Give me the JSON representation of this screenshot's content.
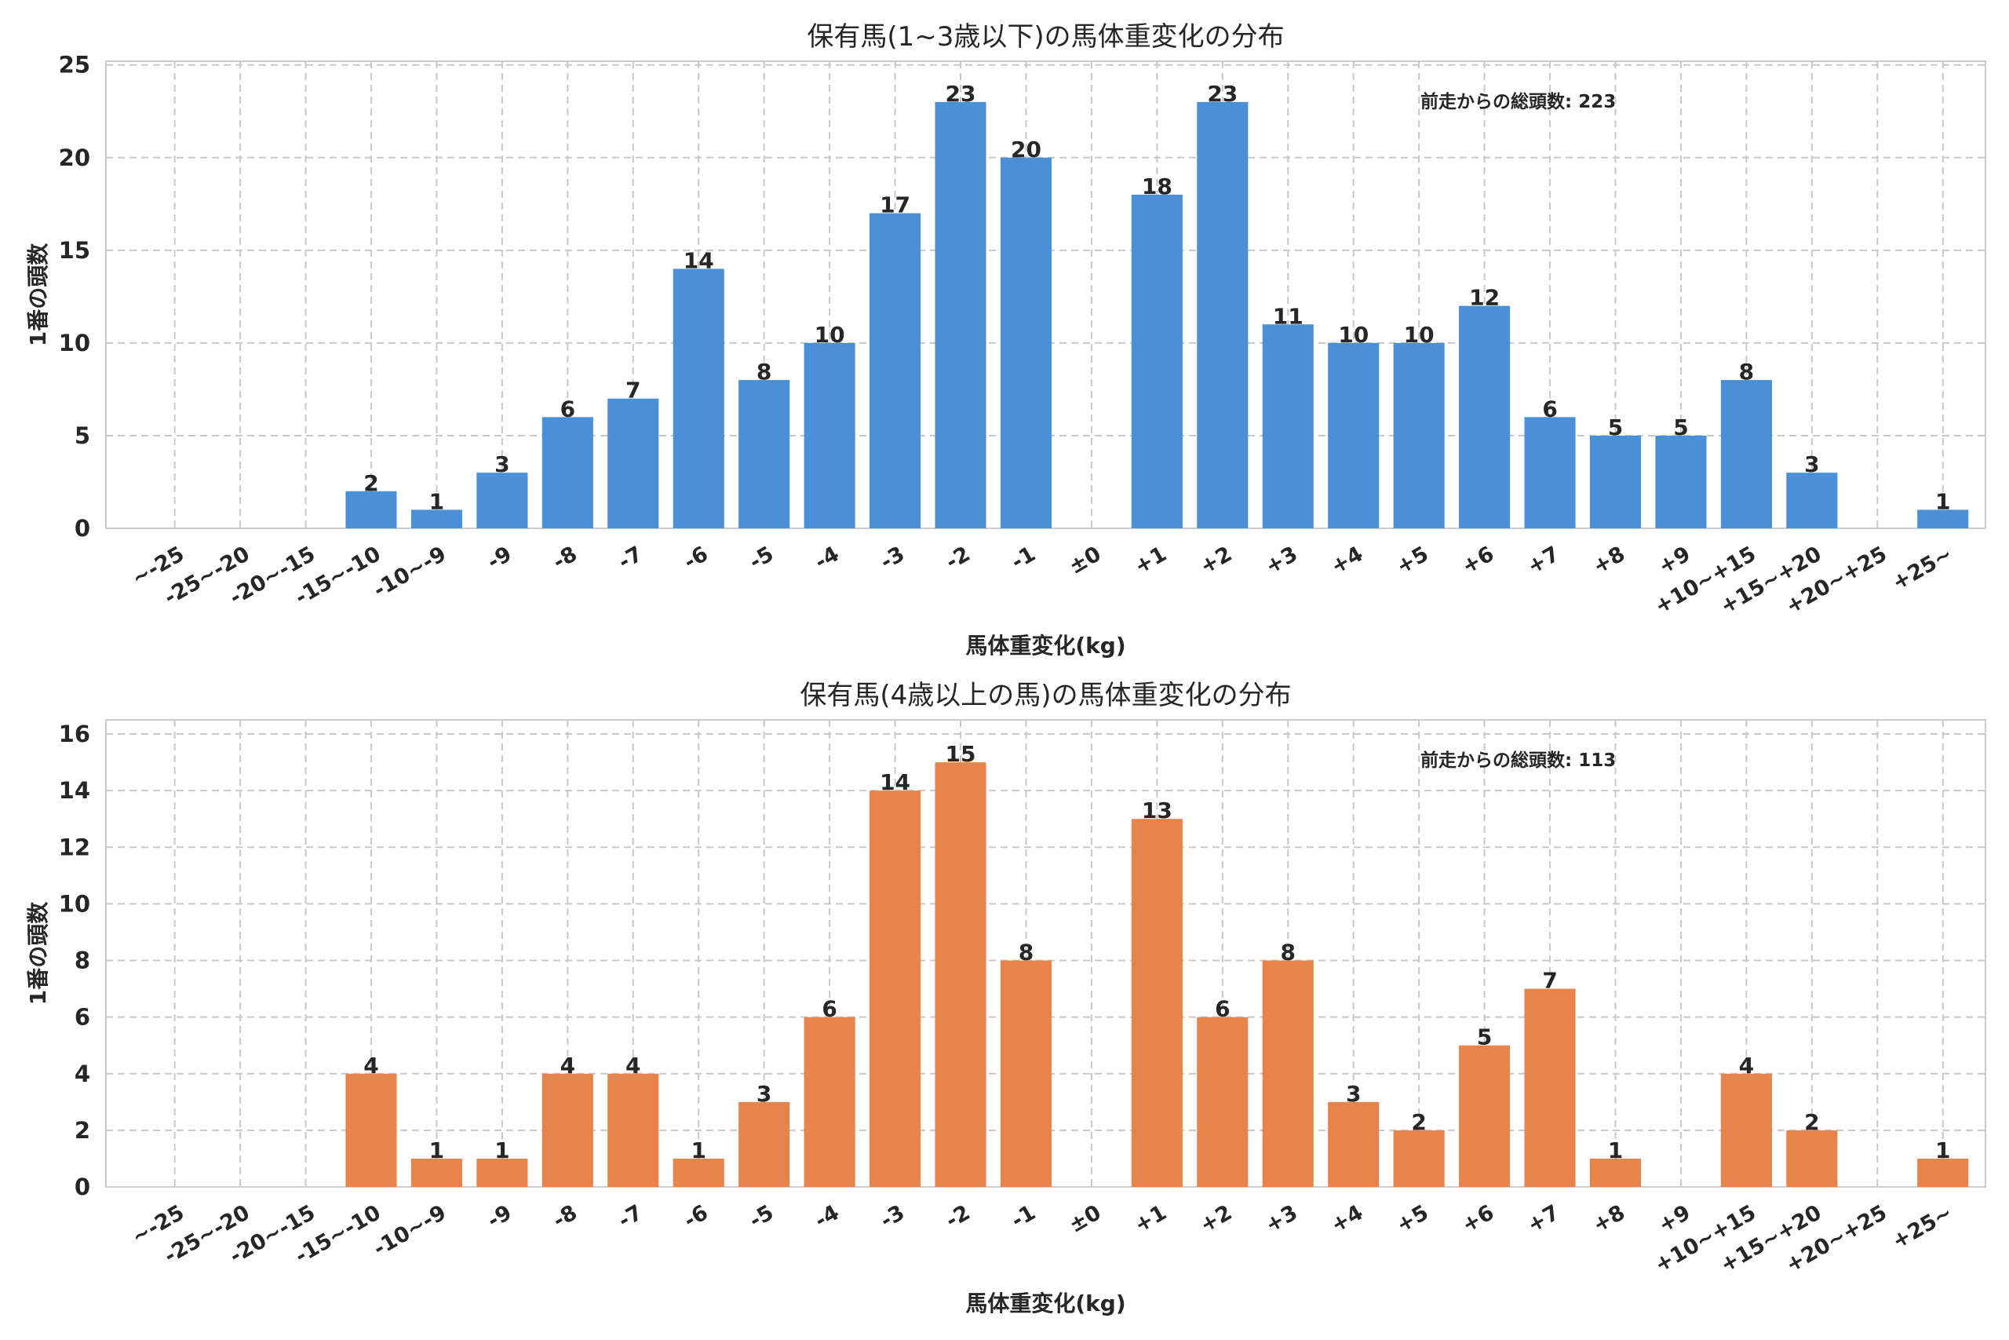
{
  "chart_data": [
    {
      "type": "bar",
      "title": "保有馬(1~3歳以下)の馬体重変化の分布",
      "xlabel": "馬体重変化(kg)",
      "ylabel": "1番の頭数",
      "annotation": "前走からの総頭数: 223",
      "color": "#4a90d9",
      "ylim": [
        0,
        25.2
      ],
      "yticks": [
        0,
        5,
        10,
        15,
        20,
        25
      ],
      "legend": "none",
      "grid": true,
      "categories": [
        "~-25",
        "-25~-20",
        "-20~-15",
        "-15~-10",
        "-10~-9",
        "-9",
        "-8",
        "-7",
        "-6",
        "-5",
        "-4",
        "-3",
        "-2",
        "-1",
        "±0",
        "+1",
        "+2",
        "+3",
        "+4",
        "+5",
        "+6",
        "+7",
        "+8",
        "+9",
        "+10~+15",
        "+15~+20",
        "+20~+25",
        "+25~"
      ],
      "values": [
        0,
        0,
        0,
        2,
        1,
        3,
        6,
        7,
        14,
        8,
        10,
        17,
        23,
        20,
        0,
        18,
        23,
        11,
        10,
        10,
        12,
        6,
        5,
        5,
        8,
        3,
        0,
        1
      ]
    },
    {
      "type": "bar",
      "title": "保有馬(4歳以上の馬)の馬体重変化の分布",
      "xlabel": "馬体重変化(kg)",
      "ylabel": "1番の頭数",
      "annotation": "前走からの総頭数: 113",
      "color": "#e8834a",
      "ylim": [
        0,
        16.5
      ],
      "yticks": [
        0,
        2,
        4,
        6,
        8,
        10,
        12,
        14,
        16
      ],
      "legend": "none",
      "grid": true,
      "categories": [
        "~-25",
        "-25~-20",
        "-20~-15",
        "-15~-10",
        "-10~-9",
        "-9",
        "-8",
        "-7",
        "-6",
        "-5",
        "-4",
        "-3",
        "-2",
        "-1",
        "±0",
        "+1",
        "+2",
        "+3",
        "+4",
        "+5",
        "+6",
        "+7",
        "+8",
        "+9",
        "+10~+15",
        "+15~+20",
        "+20~+25",
        "+25~"
      ],
      "values": [
        0,
        0,
        0,
        4,
        1,
        1,
        4,
        4,
        1,
        3,
        6,
        14,
        15,
        8,
        0,
        13,
        6,
        8,
        3,
        2,
        5,
        7,
        1,
        0,
        4,
        2,
        0,
        1
      ]
    }
  ]
}
